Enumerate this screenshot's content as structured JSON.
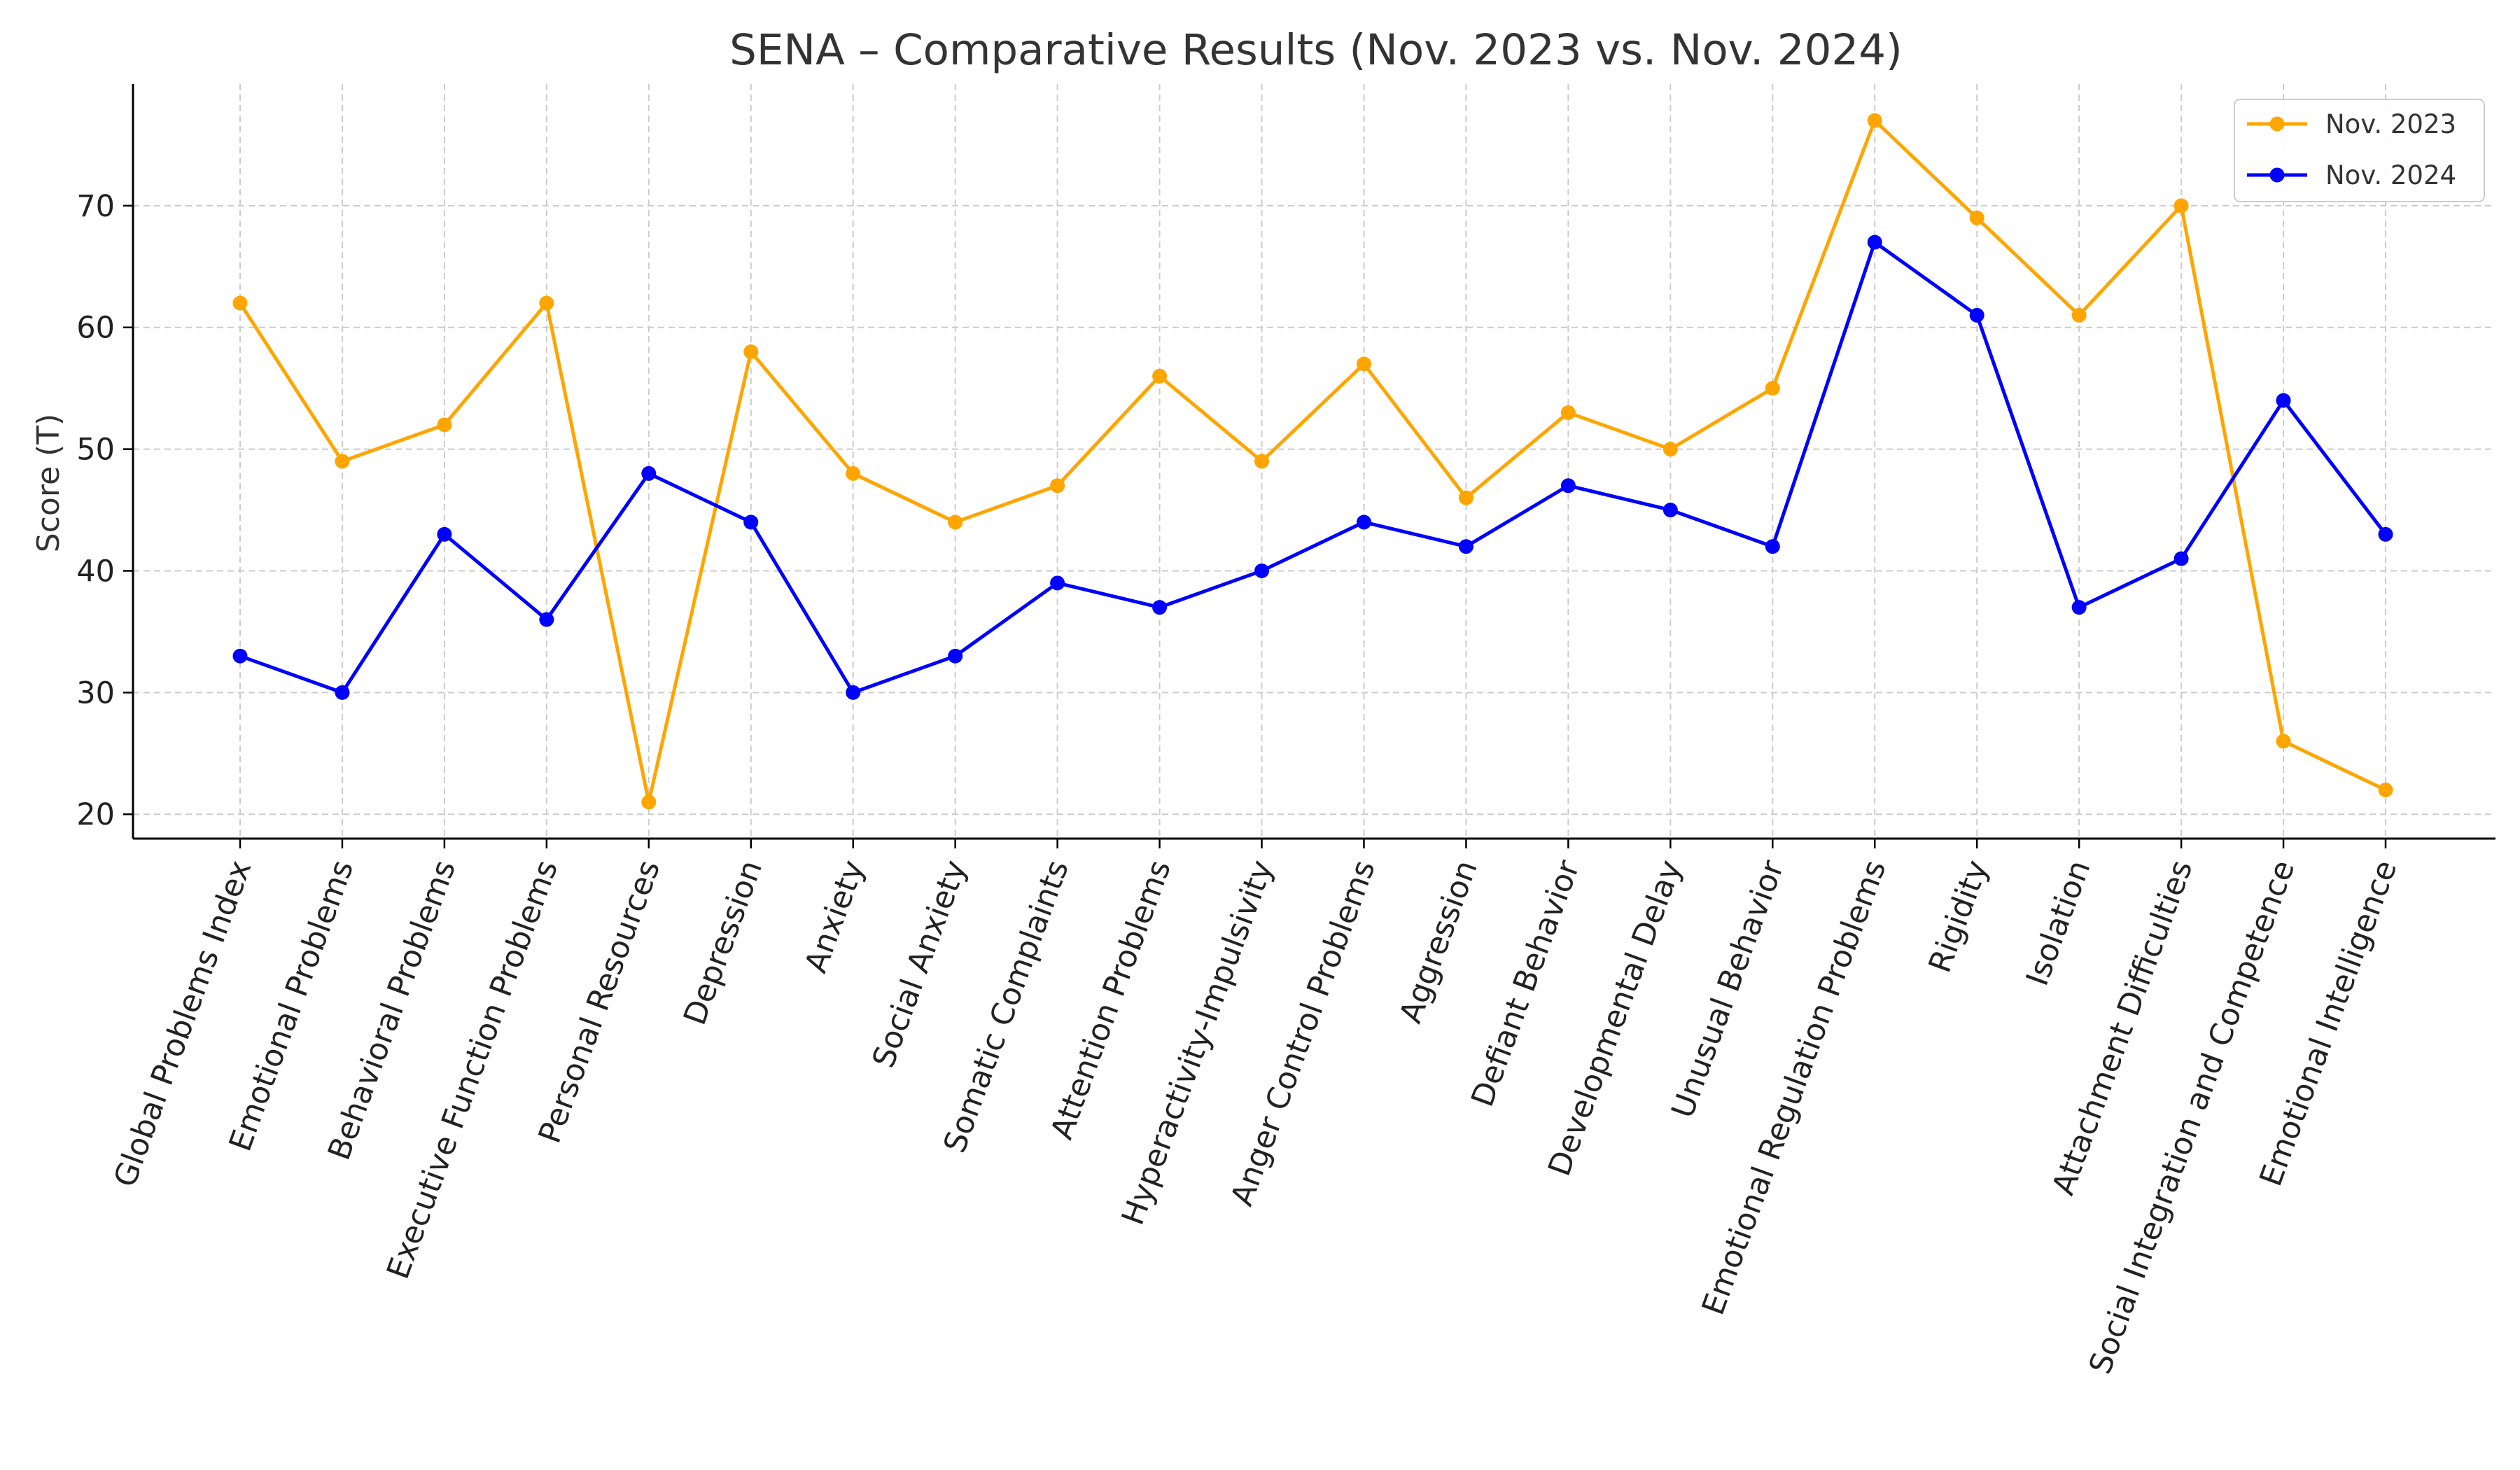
{
  "chart_data": {
    "type": "line",
    "title": "SENA – Comparative Results (Nov. 2023 vs. Nov. 2024)",
    "xlabel": "",
    "ylabel": "Score (T)",
    "ylim": [
      18,
      80
    ],
    "yticks": [
      20,
      30,
      40,
      50,
      60,
      70
    ],
    "grid": true,
    "legend_position": "top-right",
    "categories": [
      "Global Problems Index",
      "Emotional Problems",
      "Behavioral Problems",
      "Executive Function Problems",
      "Personal Resources",
      "Depression",
      "Anxiety",
      "Social Anxiety",
      "Somatic Complaints",
      "Attention Problems",
      "Hyperactivity-Impulsivity",
      "Anger Control Problems",
      "Aggression",
      "Defiant Behavior",
      "Developmental Delay",
      "Unusual Behavior",
      "Emotional Regulation Problems",
      "Rigidity",
      "Isolation",
      "Attachment Difficulties",
      "Social Integration and Competence",
      "Emotional Intelligence"
    ],
    "series": [
      {
        "name": "Nov. 2023",
        "color": "#FFA500",
        "values": [
          62,
          49,
          52,
          62,
          21,
          58,
          48,
          44,
          47,
          56,
          49,
          57,
          46,
          53,
          50,
          55,
          77,
          69,
          61,
          70,
          26,
          22
        ]
      },
      {
        "name": "Nov. 2024",
        "color": "#0000FF",
        "values": [
          33,
          30,
          43,
          36,
          48,
          44,
          30,
          33,
          39,
          37,
          40,
          44,
          42,
          47,
          45,
          42,
          67,
          61,
          37,
          41,
          54,
          43
        ]
      }
    ]
  }
}
